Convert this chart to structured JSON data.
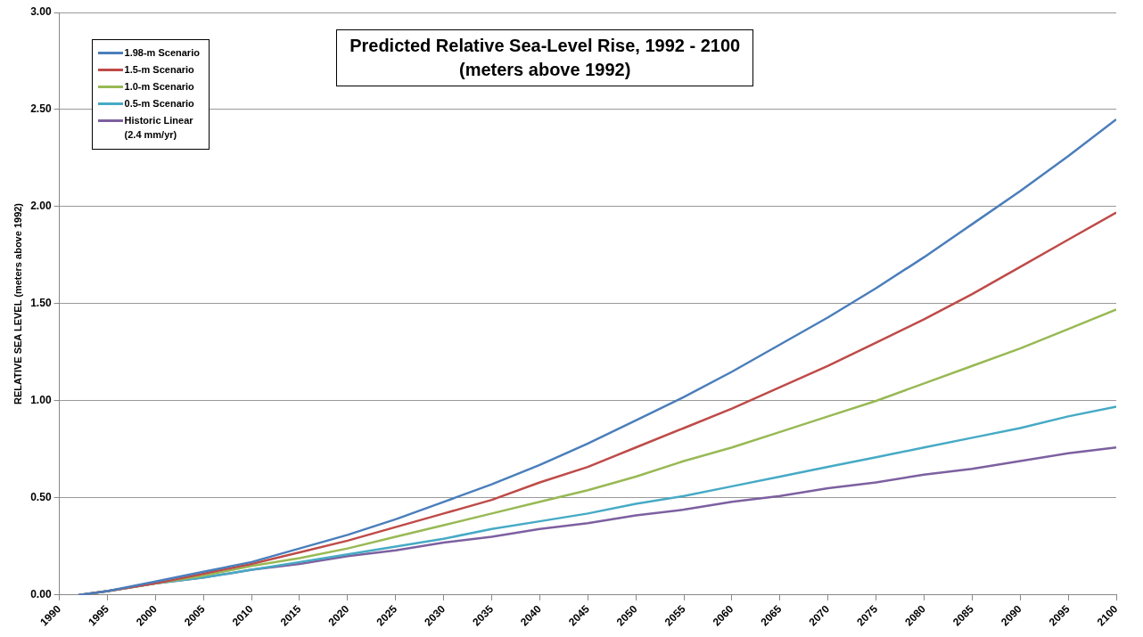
{
  "chart_data": {
    "type": "line",
    "title": "Predicted Relative Sea-Level Rise, 1992 - 2100",
    "subtitle": "(meters above 1992)",
    "ylabel": "RELATIVE SEA LEVEL (meters above 1992)",
    "x": [
      1992,
      1995,
      2000,
      2005,
      2010,
      2015,
      2020,
      2025,
      2030,
      2035,
      2040,
      2045,
      2050,
      2055,
      2060,
      2065,
      2070,
      2075,
      2080,
      2085,
      2090,
      2095,
      2100
    ],
    "series": [
      {
        "name": "1.98-m Scenario",
        "color": "#4a7ebb",
        "values": [
          0,
          0.02,
          0.07,
          0.12,
          0.17,
          0.24,
          0.31,
          0.39,
          0.48,
          0.57,
          0.67,
          0.78,
          0.9,
          1.02,
          1.15,
          1.29,
          1.43,
          1.58,
          1.74,
          1.91,
          2.08,
          2.26,
          2.45
        ]
      },
      {
        "name": "1.5-m Scenario",
        "color": "#be4b48",
        "values": [
          0,
          0.02,
          0.06,
          0.11,
          0.16,
          0.22,
          0.28,
          0.35,
          0.42,
          0.49,
          0.58,
          0.66,
          0.76,
          0.86,
          0.96,
          1.07,
          1.18,
          1.3,
          1.42,
          1.55,
          1.69,
          1.83,
          1.97
        ]
      },
      {
        "name": "1.0-m Scenario",
        "color": "#98b954",
        "values": [
          0,
          0.02,
          0.06,
          0.1,
          0.15,
          0.19,
          0.24,
          0.3,
          0.36,
          0.42,
          0.48,
          0.54,
          0.61,
          0.69,
          0.76,
          0.84,
          0.92,
          1.0,
          1.09,
          1.18,
          1.27,
          1.37,
          1.47
        ]
      },
      {
        "name": "0.5-m Scenario",
        "color": "#46aac5",
        "values": [
          0,
          0.02,
          0.06,
          0.09,
          0.13,
          0.17,
          0.21,
          0.25,
          0.29,
          0.34,
          0.38,
          0.42,
          0.47,
          0.51,
          0.56,
          0.61,
          0.66,
          0.71,
          0.76,
          0.81,
          0.86,
          0.92,
          0.97
        ]
      },
      {
        "name": "Historic Linear (2.4 mm/yr)",
        "color": "#7d60a0",
        "values": [
          0,
          0.02,
          0.06,
          0.09,
          0.13,
          0.16,
          0.2,
          0.23,
          0.27,
          0.3,
          0.34,
          0.37,
          0.41,
          0.44,
          0.48,
          0.51,
          0.55,
          0.58,
          0.62,
          0.65,
          0.69,
          0.73,
          0.76
        ]
      }
    ],
    "xlim": [
      1990,
      2100
    ],
    "xticks": [
      1990,
      1995,
      2000,
      2005,
      2010,
      2015,
      2020,
      2025,
      2030,
      2035,
      2040,
      2045,
      2050,
      2055,
      2060,
      2065,
      2070,
      2075,
      2080,
      2085,
      2090,
      2095,
      2100
    ],
    "ylim": [
      0,
      3
    ],
    "yticks": [
      {
        "value": 0,
        "label": "0.00"
      },
      {
        "value": 0.5,
        "label": "0.50"
      },
      {
        "value": 1,
        "label": "1.00"
      },
      {
        "value": 1.5,
        "label": "1.50"
      },
      {
        "value": 2,
        "label": "2.00"
      },
      {
        "value": 2.5,
        "label": "2.50"
      },
      {
        "value": 3,
        "label": "3.00"
      }
    ],
    "grid": "y",
    "legend": "top left",
    "marker": "none",
    "line_style": "solid"
  }
}
